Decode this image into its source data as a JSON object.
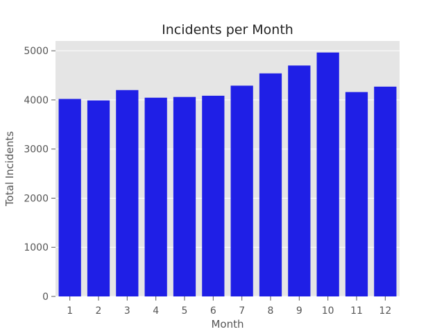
{
  "chart_data": {
    "type": "bar",
    "title": "Incidents per Month",
    "xlabel": "Month",
    "ylabel": "Total Incidents",
    "categories": [
      "1",
      "2",
      "3",
      "4",
      "5",
      "6",
      "7",
      "8",
      "9",
      "10",
      "11",
      "12"
    ],
    "values": [
      4020,
      3990,
      4200,
      4045,
      4060,
      4085,
      4290,
      4540,
      4700,
      4965,
      4160,
      4270
    ],
    "ylim": [
      0,
      5200
    ],
    "yticks": [
      "0",
      "1000",
      "2000",
      "3000",
      "4000",
      "5000"
    ],
    "grid": true,
    "legend": "none",
    "colors": {
      "bar": "#1f1fe6",
      "plot_background": "#e5e5e5",
      "grid": "#ffffff"
    }
  }
}
